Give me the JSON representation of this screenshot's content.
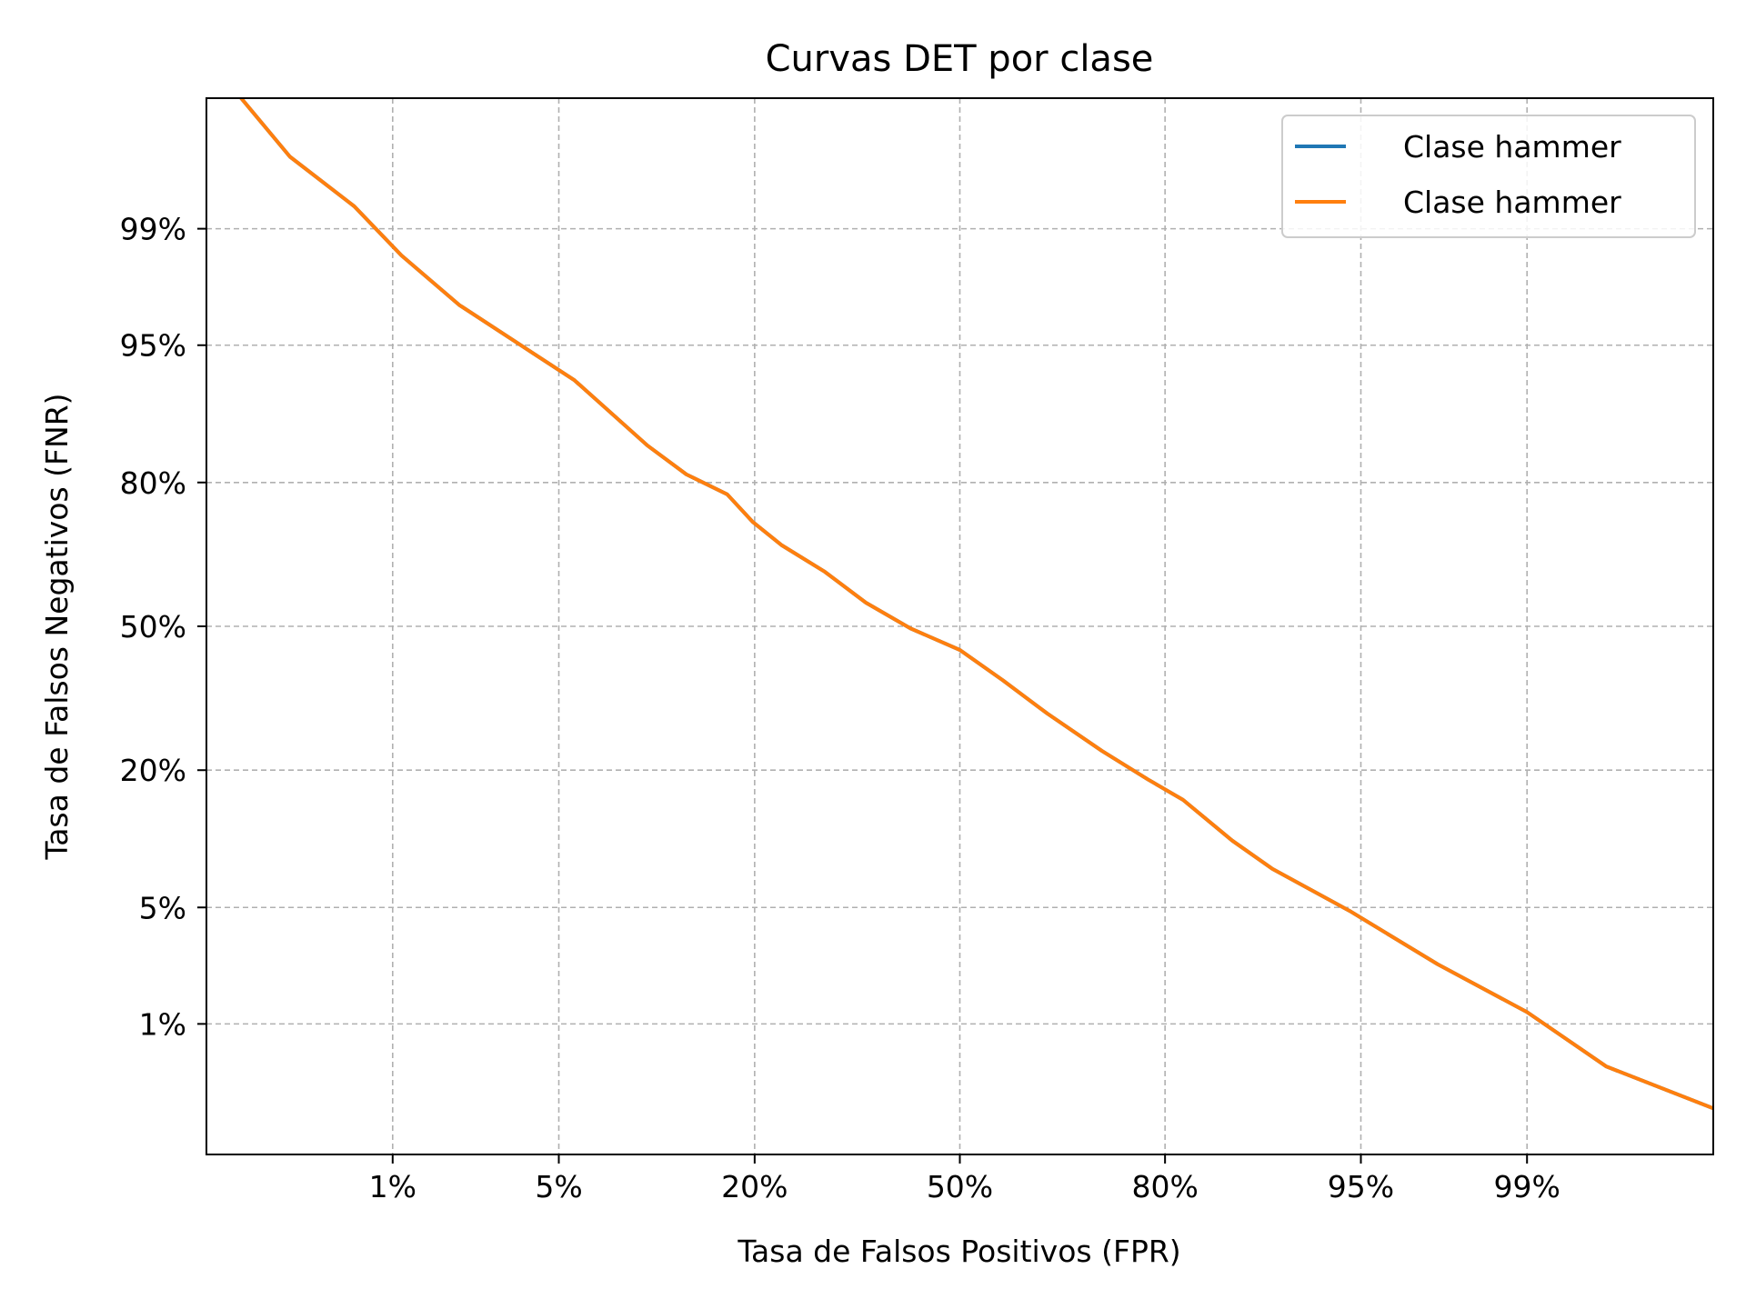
{
  "chart_data": {
    "type": "line",
    "title": "Curvas DET por clase",
    "xlabel": "Tasa de Falsos Positivos (FPR)",
    "ylabel": "Tasa de Falsos Negativos (FNR)",
    "xscale": "probit",
    "yscale": "probit",
    "xlim": [
      0.001,
      0.999
    ],
    "ylim": [
      0.001,
      0.999
    ],
    "xticks": [
      0.01,
      0.05,
      0.2,
      0.5,
      0.8,
      0.95,
      0.99
    ],
    "xticklabels": [
      "1%",
      "5%",
      "20%",
      "50%",
      "80%",
      "95%",
      "99%"
    ],
    "yticks": [
      0.01,
      0.05,
      0.2,
      0.5,
      0.8,
      0.95,
      0.99
    ],
    "yticklabels": [
      "1%",
      "5%",
      "20%",
      "50%",
      "80%",
      "95%",
      "99%"
    ],
    "grid": true,
    "legend_position": "top-right",
    "series": [
      {
        "name": "Clase hammer",
        "color": "#1f77b4",
        "x": [
          0.0016,
          0.003,
          0.0065,
          0.011,
          0.02,
          0.04,
          0.057,
          0.1,
          0.131,
          0.17,
          0.198,
          0.232,
          0.29,
          0.35,
          0.42,
          0.5,
          0.57,
          0.64,
          0.72,
          0.78,
          0.82,
          0.868,
          0.9,
          0.945,
          0.975,
          0.99,
          0.996,
          0.999
        ],
        "y": [
          0.999,
          0.997,
          0.993,
          0.985,
          0.97,
          0.945,
          0.925,
          0.855,
          0.813,
          0.78,
          0.729,
          0.683,
          0.625,
          0.555,
          0.495,
          0.445,
          0.376,
          0.305,
          0.233,
          0.185,
          0.155,
          0.105,
          0.078,
          0.048,
          0.024,
          0.012,
          0.005,
          0.0024
        ]
      },
      {
        "name": "Clase hammer",
        "color": "#ff7f0e",
        "x": [
          0.0016,
          0.003,
          0.0065,
          0.011,
          0.02,
          0.04,
          0.057,
          0.1,
          0.131,
          0.17,
          0.198,
          0.232,
          0.29,
          0.35,
          0.42,
          0.5,
          0.57,
          0.64,
          0.72,
          0.78,
          0.82,
          0.868,
          0.9,
          0.945,
          0.975,
          0.99,
          0.996,
          0.999
        ],
        "y": [
          0.999,
          0.997,
          0.993,
          0.985,
          0.97,
          0.945,
          0.925,
          0.855,
          0.813,
          0.78,
          0.729,
          0.683,
          0.625,
          0.555,
          0.495,
          0.445,
          0.376,
          0.305,
          0.233,
          0.185,
          0.155,
          0.105,
          0.078,
          0.048,
          0.024,
          0.012,
          0.005,
          0.0024
        ]
      }
    ]
  }
}
